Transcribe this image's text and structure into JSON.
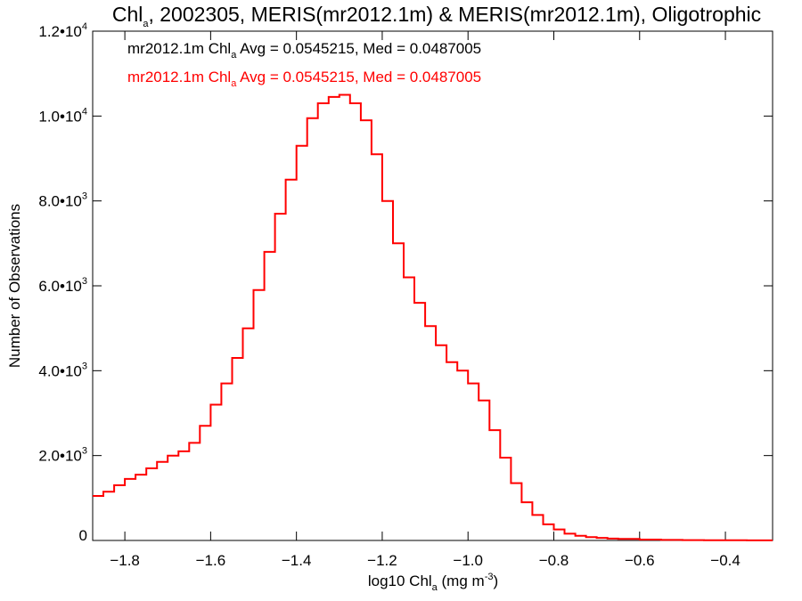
{
  "chart_data": {
    "type": "histogram_step",
    "title": {
      "prefix": "Chl",
      "prefix_sub": "a",
      "rest": ", 2002305, MERIS(mr2012.1m) & MERIS(mr2012.1m), Oligotrophic"
    },
    "xlabel": {
      "main": "log10 Chl",
      "sub": "a",
      "unit": " (mg m",
      "unit_sup": "-3",
      "close": ")"
    },
    "ylabel": "Number of Observations",
    "xlim": [
      -1.875,
      -0.29
    ],
    "ylim": [
      0,
      12000
    ],
    "x_ticks": [
      {
        "value": -1.8,
        "label": "−1.8"
      },
      {
        "value": -1.6,
        "label": "−1.6"
      },
      {
        "value": -1.4,
        "label": "−1.4"
      },
      {
        "value": -1.2,
        "label": "−1.2"
      },
      {
        "value": -1.0,
        "label": "−1.0"
      },
      {
        "value": -0.8,
        "label": "−0.8"
      },
      {
        "value": -0.6,
        "label": "−0.6"
      },
      {
        "value": -0.4,
        "label": "−0.4"
      }
    ],
    "y_ticks": [
      {
        "value": 0,
        "mantissa": "0",
        "exp": ""
      },
      {
        "value": 2000,
        "mantissa": "2.0•10",
        "exp": "3"
      },
      {
        "value": 4000,
        "mantissa": "4.0•10",
        "exp": "3"
      },
      {
        "value": 6000,
        "mantissa": "6.0•10",
        "exp": "3"
      },
      {
        "value": 8000,
        "mantissa": "8.0•10",
        "exp": "3"
      },
      {
        "value": 10000,
        "mantissa": "1.0•10",
        "exp": "4"
      },
      {
        "value": 12000,
        "mantissa": "1.2•10",
        "exp": "4"
      }
    ],
    "legend": [
      {
        "name": "mr2012.1m",
        "label_main": "mr2012.1m Chl",
        "label_sub": "a",
        "label_rest": " Avg = 0.0545215, Med = 0.0487005",
        "color": "#000000"
      },
      {
        "name": "mr2012.1m",
        "label_main": "mr2012.1m Chl",
        "label_sub": "a",
        "label_rest": " Avg = 0.0545215, Med = 0.0487005",
        "color": "#ff0000"
      }
    ],
    "series": [
      {
        "name": "mr2012.1m",
        "color": "#ff0000",
        "x": [
          -1.875,
          -1.85,
          -1.825,
          -1.8,
          -1.775,
          -1.75,
          -1.725,
          -1.7,
          -1.675,
          -1.65,
          -1.625,
          -1.6,
          -1.575,
          -1.55,
          -1.525,
          -1.5,
          -1.475,
          -1.45,
          -1.425,
          -1.4,
          -1.375,
          -1.35,
          -1.325,
          -1.3,
          -1.275,
          -1.25,
          -1.225,
          -1.2,
          -1.175,
          -1.15,
          -1.125,
          -1.1,
          -1.075,
          -1.05,
          -1.025,
          -1.0,
          -0.975,
          -0.95,
          -0.925,
          -0.9,
          -0.875,
          -0.85,
          -0.825,
          -0.8,
          -0.775,
          -0.75,
          -0.725,
          -0.7,
          -0.675,
          -0.65,
          -0.6,
          -0.55,
          -0.5,
          -0.45,
          -0.4,
          -0.35,
          -0.29
        ],
        "y": [
          1050,
          1150,
          1300,
          1450,
          1550,
          1700,
          1850,
          2000,
          2100,
          2300,
          2700,
          3200,
          3700,
          4300,
          5000,
          5900,
          6800,
          7700,
          8500,
          9300,
          9950,
          10300,
          10450,
          10500,
          10300,
          9900,
          9100,
          8000,
          7000,
          6200,
          5600,
          5050,
          4600,
          4200,
          4000,
          3700,
          3300,
          2600,
          1950,
          1350,
          900,
          600,
          380,
          260,
          160,
          110,
          80,
          60,
          45,
          35,
          20,
          12,
          8,
          5,
          4,
          3,
          2
        ]
      }
    ]
  }
}
